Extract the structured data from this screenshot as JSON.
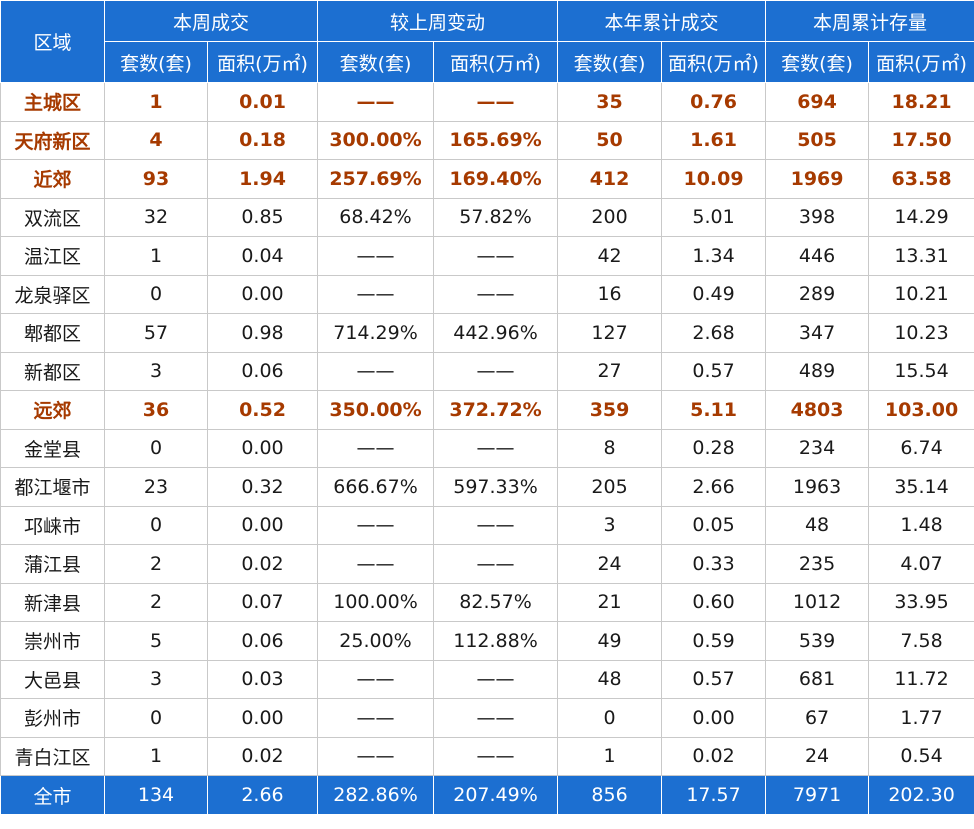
{
  "header": {
    "region": "区域",
    "groups": [
      "本周成交",
      "较上周变动",
      "本年累计成交",
      "本周累计存量"
    ],
    "subcols": [
      "套数(套)",
      "面积(万㎡)",
      "套数(套)",
      "面积(万㎡)",
      "套数(套)",
      "面积(万㎡)",
      "套数(套)",
      "面积(万㎡)"
    ]
  },
  "rows": [
    {
      "name": "主城区",
      "bold": true,
      "cells": [
        "1",
        "0.01",
        "——",
        "——",
        "35",
        "0.76",
        "694",
        "18.21"
      ]
    },
    {
      "name": "天府新区",
      "bold": true,
      "cells": [
        "4",
        "0.18",
        "300.00%",
        "165.69%",
        "50",
        "1.61",
        "505",
        "17.50"
      ]
    },
    {
      "name": "近郊",
      "bold": true,
      "cells": [
        "93",
        "1.94",
        "257.69%",
        "169.40%",
        "412",
        "10.09",
        "1969",
        "63.58"
      ]
    },
    {
      "name": "双流区",
      "bold": false,
      "cells": [
        "32",
        "0.85",
        "68.42%",
        "57.82%",
        "200",
        "5.01",
        "398",
        "14.29"
      ]
    },
    {
      "name": "温江区",
      "bold": false,
      "cells": [
        "1",
        "0.04",
        "——",
        "——",
        "42",
        "1.34",
        "446",
        "13.31"
      ]
    },
    {
      "name": "龙泉驿区",
      "bold": false,
      "cells": [
        "0",
        "0.00",
        "——",
        "——",
        "16",
        "0.49",
        "289",
        "10.21"
      ]
    },
    {
      "name": "郫都区",
      "bold": false,
      "cells": [
        "57",
        "0.98",
        "714.29%",
        "442.96%",
        "127",
        "2.68",
        "347",
        "10.23"
      ]
    },
    {
      "name": "新都区",
      "bold": false,
      "cells": [
        "3",
        "0.06",
        "——",
        "——",
        "27",
        "0.57",
        "489",
        "15.54"
      ]
    },
    {
      "name": "远郊",
      "bold": true,
      "cells": [
        "36",
        "0.52",
        "350.00%",
        "372.72%",
        "359",
        "5.11",
        "4803",
        "103.00"
      ]
    },
    {
      "name": "金堂县",
      "bold": false,
      "cells": [
        "0",
        "0.00",
        "——",
        "——",
        "8",
        "0.28",
        "234",
        "6.74"
      ]
    },
    {
      "name": "都江堰市",
      "bold": false,
      "cells": [
        "23",
        "0.32",
        "666.67%",
        "597.33%",
        "205",
        "2.66",
        "1963",
        "35.14"
      ]
    },
    {
      "name": "邛崃市",
      "bold": false,
      "cells": [
        "0",
        "0.00",
        "——",
        "——",
        "3",
        "0.05",
        "48",
        "1.48"
      ]
    },
    {
      "name": "蒲江县",
      "bold": false,
      "cells": [
        "2",
        "0.02",
        "——",
        "——",
        "24",
        "0.33",
        "235",
        "4.07"
      ]
    },
    {
      "name": "新津县",
      "bold": false,
      "cells": [
        "2",
        "0.07",
        "100.00%",
        "82.57%",
        "21",
        "0.60",
        "1012",
        "33.95"
      ]
    },
    {
      "name": "崇州市",
      "bold": false,
      "cells": [
        "5",
        "0.06",
        "25.00%",
        "112.88%",
        "49",
        "0.59",
        "539",
        "7.58"
      ]
    },
    {
      "name": "大邑县",
      "bold": false,
      "cells": [
        "3",
        "0.03",
        "——",
        "——",
        "48",
        "0.57",
        "681",
        "11.72"
      ]
    },
    {
      "name": "彭州市",
      "bold": false,
      "cells": [
        "0",
        "0.00",
        "——",
        "——",
        "0",
        "0.00",
        "67",
        "1.77"
      ]
    },
    {
      "name": "青白江区",
      "bold": false,
      "cells": [
        "1",
        "0.02",
        "——",
        "——",
        "1",
        "0.02",
        "24",
        "0.54"
      ]
    }
  ],
  "total": {
    "name": "全市",
    "cells": [
      "134",
      "2.66",
      "282.86%",
      "207.49%",
      "856",
      "17.57",
      "7971",
      "202.30"
    ]
  },
  "colors": {
    "header_bg": "#1c6fd1",
    "bold_text": "#a63a00"
  }
}
